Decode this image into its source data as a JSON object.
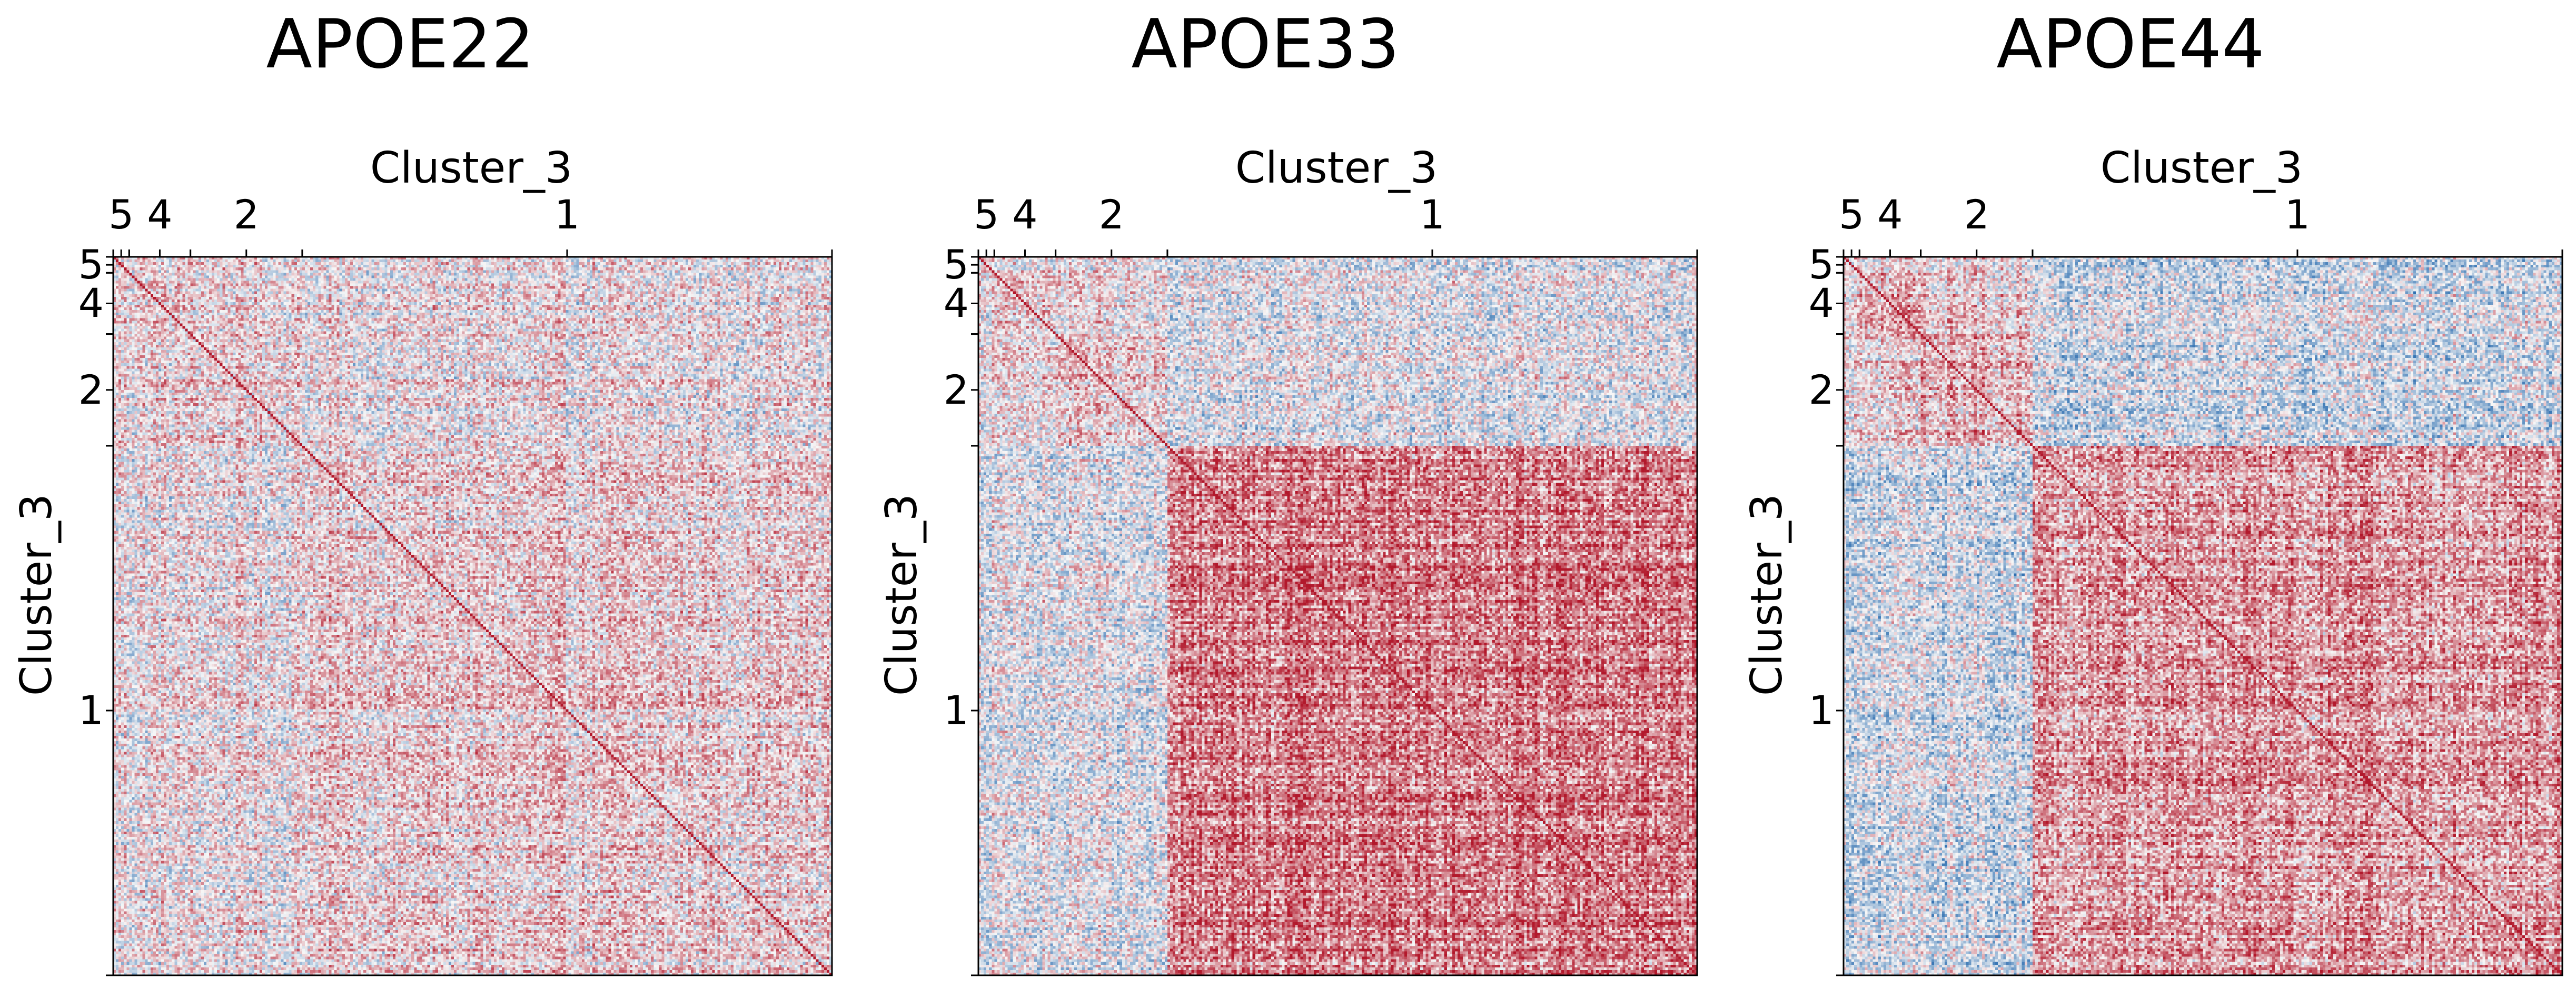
{
  "chart_data": [
    {
      "type": "heatmap",
      "title": "APOE22",
      "xlabel": "Cluster_3",
      "ylabel": "Cluster_3",
      "clusters": [
        {
          "label": "5",
          "size": 6
        },
        {
          "label": "4",
          "size": 23
        },
        {
          "label": "2",
          "size": 42
        },
        {
          "label": "1",
          "size": 199
        }
      ],
      "colormap": "RdBu_r",
      "colors": {
        "low": "#2166ac",
        "mid": "#f7f7f7",
        "high": "#b2182b"
      },
      "pattern": {
        "within_high": 0.15,
        "between_high": 0.12,
        "cross_low": 0.05
      }
    },
    {
      "type": "heatmap",
      "title": "APOE33",
      "xlabel": "Cluster_3",
      "ylabel": "Cluster_3",
      "clusters": [
        {
          "label": "5",
          "size": 6
        },
        {
          "label": "4",
          "size": 23
        },
        {
          "label": "2",
          "size": 42
        },
        {
          "label": "1",
          "size": 199
        }
      ],
      "colormap": "RdBu_r",
      "colors": {
        "low": "#2166ac",
        "mid": "#f7f7f7",
        "high": "#b2182b"
      },
      "pattern": {
        "within_high": 0.2,
        "between_high": 0.1,
        "cross_low": -0.05,
        "cluster1_block": 0.55
      }
    },
    {
      "type": "heatmap",
      "title": "APOE44",
      "xlabel": "Cluster_3",
      "ylabel": "Cluster_3",
      "clusters": [
        {
          "label": "5",
          "size": 6
        },
        {
          "label": "4",
          "size": 23
        },
        {
          "label": "2",
          "size": 42
        },
        {
          "label": "1",
          "size": 199
        }
      ],
      "colormap": "RdBu_r",
      "colors": {
        "low": "#2166ac",
        "mid": "#f7f7f7",
        "high": "#b2182b"
      },
      "pattern": {
        "within_high": 0.3,
        "between_high": 0.15,
        "cross_low": -0.15,
        "cluster1_block": 0.4
      }
    }
  ]
}
